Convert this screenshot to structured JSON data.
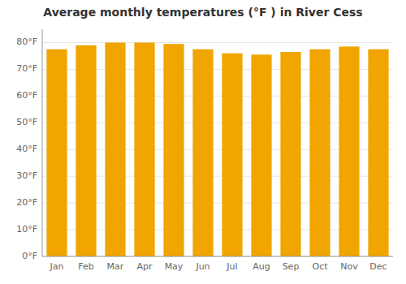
{
  "chart_data": {
    "type": "bar",
    "title": "Average monthly temperatures (°F ) in River Cess",
    "categories": [
      "Jan",
      "Feb",
      "Mar",
      "Apr",
      "May",
      "Jun",
      "Jul",
      "Aug",
      "Sep",
      "Oct",
      "Nov",
      "Dec"
    ],
    "values": [
      77.5,
      79.0,
      80.0,
      80.0,
      79.5,
      77.5,
      76.0,
      75.5,
      76.5,
      77.5,
      78.5,
      77.5
    ],
    "color": "#F0A500",
    "ylim": [
      0,
      85
    ],
    "yticks": [
      {
        "value": 0,
        "label": "0°F"
      },
      {
        "value": 10,
        "label": "10°F"
      },
      {
        "value": 20,
        "label": "20°F"
      },
      {
        "value": 30,
        "label": "30°F"
      },
      {
        "value": 40,
        "label": "40°F"
      },
      {
        "value": 50,
        "label": "50°F"
      },
      {
        "value": 60,
        "label": "60°F"
      },
      {
        "value": 70,
        "label": "70°F"
      },
      {
        "value": 80,
        "label": "80°F"
      }
    ],
    "grid": true
  }
}
